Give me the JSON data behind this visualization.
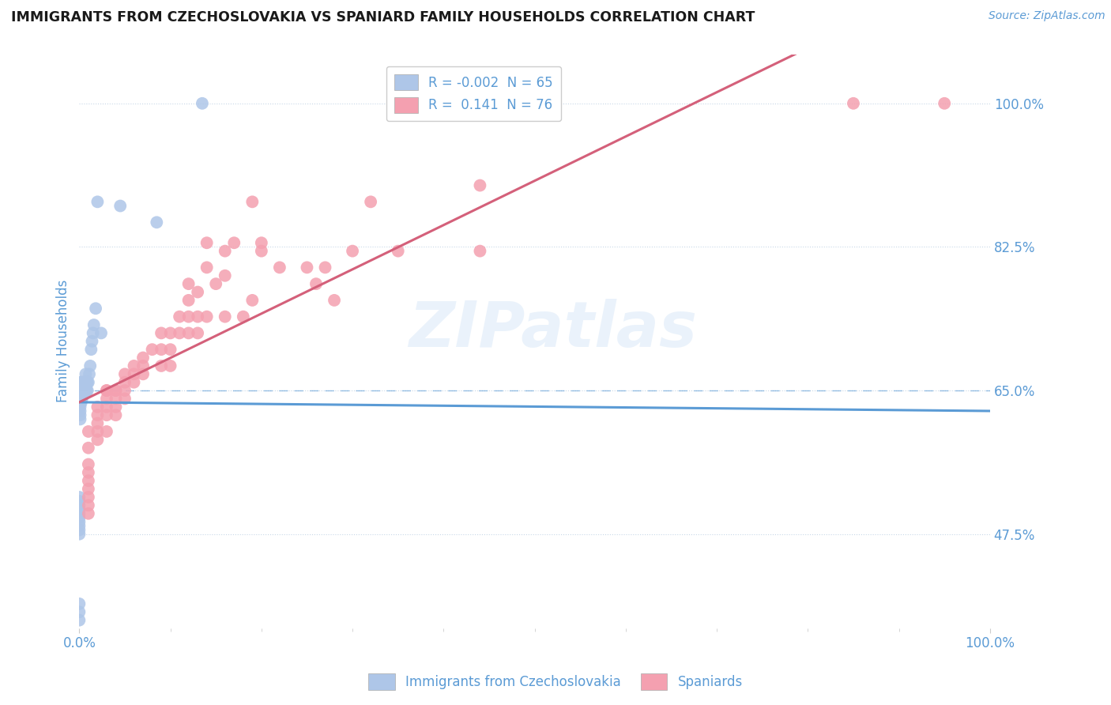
{
  "title": "IMMIGRANTS FROM CZECHOSLOVAKIA VS SPANIARD FAMILY HOUSEHOLDS CORRELATION CHART",
  "source": "Source: ZipAtlas.com",
  "ylabel": "Family Households",
  "watermark": "ZIPatlas",
  "legend_blue_r": "-0.002",
  "legend_blue_n": "65",
  "legend_pink_r": "0.141",
  "legend_pink_n": "76",
  "xlim": [
    0.0,
    1.0
  ],
  "ylim": [
    0.36,
    1.06
  ],
  "yticks": [
    0.475,
    0.65,
    0.825,
    1.0
  ],
  "ytick_labels": [
    "47.5%",
    "65.0%",
    "82.5%",
    "100.0%"
  ],
  "xtick_labels": [
    "0.0%",
    "100.0%"
  ],
  "xticks": [
    0.0,
    1.0
  ],
  "blue_color": "#aec6e8",
  "pink_color": "#f4a0b0",
  "blue_line_color": "#5b9bd5",
  "pink_line_color": "#d4607a",
  "axis_label_color": "#5b9bd5",
  "grid_color": "#c8d8e8",
  "background_color": "#ffffff",
  "blue_scatter_x": [
    0.135,
    0.085,
    0.045,
    0.024,
    0.02,
    0.018,
    0.016,
    0.015,
    0.014,
    0.013,
    0.012,
    0.011,
    0.01,
    0.009,
    0.009,
    0.008,
    0.008,
    0.007,
    0.007,
    0.006,
    0.006,
    0.005,
    0.005,
    0.005,
    0.004,
    0.004,
    0.004,
    0.003,
    0.003,
    0.003,
    0.003,
    0.002,
    0.002,
    0.002,
    0.002,
    0.002,
    0.001,
    0.001,
    0.001,
    0.001,
    0.001,
    0.001,
    0.001,
    0.001,
    0.001,
    0.001,
    0.0,
    0.0,
    0.0,
    0.0,
    0.0,
    0.0,
    0.0,
    0.0,
    0.0,
    0.0,
    0.0,
    0.0,
    0.0,
    0.0,
    0.0,
    0.0,
    0.0,
    0.0,
    0.0
  ],
  "blue_scatter_y": [
    1.0,
    0.855,
    0.875,
    0.72,
    0.88,
    0.75,
    0.73,
    0.72,
    0.71,
    0.7,
    0.68,
    0.67,
    0.66,
    0.66,
    0.65,
    0.66,
    0.65,
    0.67,
    0.65,
    0.66,
    0.65,
    0.66,
    0.645,
    0.65,
    0.66,
    0.65,
    0.645,
    0.66,
    0.65,
    0.645,
    0.64,
    0.66,
    0.655,
    0.645,
    0.64,
    0.635,
    0.655,
    0.65,
    0.648,
    0.645,
    0.64,
    0.635,
    0.63,
    0.625,
    0.62,
    0.615,
    0.66,
    0.655,
    0.65,
    0.648,
    0.645,
    0.64,
    0.52,
    0.515,
    0.51,
    0.505,
    0.5,
    0.495,
    0.49,
    0.485,
    0.48,
    0.475,
    0.39,
    0.38,
    0.37
  ],
  "pink_scatter_x": [
    0.85,
    0.95,
    0.44,
    0.44,
    0.3,
    0.32,
    0.35,
    0.27,
    0.26,
    0.28,
    0.25,
    0.22,
    0.2,
    0.2,
    0.19,
    0.19,
    0.18,
    0.17,
    0.16,
    0.16,
    0.16,
    0.15,
    0.14,
    0.14,
    0.14,
    0.13,
    0.13,
    0.13,
    0.12,
    0.12,
    0.12,
    0.12,
    0.11,
    0.11,
    0.1,
    0.1,
    0.1,
    0.09,
    0.09,
    0.09,
    0.08,
    0.07,
    0.07,
    0.07,
    0.06,
    0.06,
    0.06,
    0.05,
    0.05,
    0.05,
    0.05,
    0.04,
    0.04,
    0.04,
    0.04,
    0.04,
    0.03,
    0.03,
    0.03,
    0.03,
    0.03,
    0.03,
    0.02,
    0.02,
    0.02,
    0.02,
    0.02,
    0.01,
    0.01,
    0.01,
    0.01,
    0.01,
    0.01,
    0.01,
    0.01,
    0.01
  ],
  "pink_scatter_y": [
    1.0,
    1.0,
    0.9,
    0.82,
    0.82,
    0.88,
    0.82,
    0.8,
    0.78,
    0.76,
    0.8,
    0.8,
    0.83,
    0.82,
    0.88,
    0.76,
    0.74,
    0.83,
    0.82,
    0.79,
    0.74,
    0.78,
    0.83,
    0.8,
    0.74,
    0.77,
    0.74,
    0.72,
    0.78,
    0.76,
    0.74,
    0.72,
    0.74,
    0.72,
    0.72,
    0.7,
    0.68,
    0.72,
    0.7,
    0.68,
    0.7,
    0.69,
    0.68,
    0.67,
    0.68,
    0.67,
    0.66,
    0.67,
    0.66,
    0.65,
    0.64,
    0.65,
    0.65,
    0.64,
    0.63,
    0.62,
    0.65,
    0.65,
    0.64,
    0.63,
    0.62,
    0.6,
    0.63,
    0.62,
    0.61,
    0.6,
    0.59,
    0.6,
    0.58,
    0.56,
    0.55,
    0.54,
    0.53,
    0.52,
    0.51,
    0.5
  ]
}
